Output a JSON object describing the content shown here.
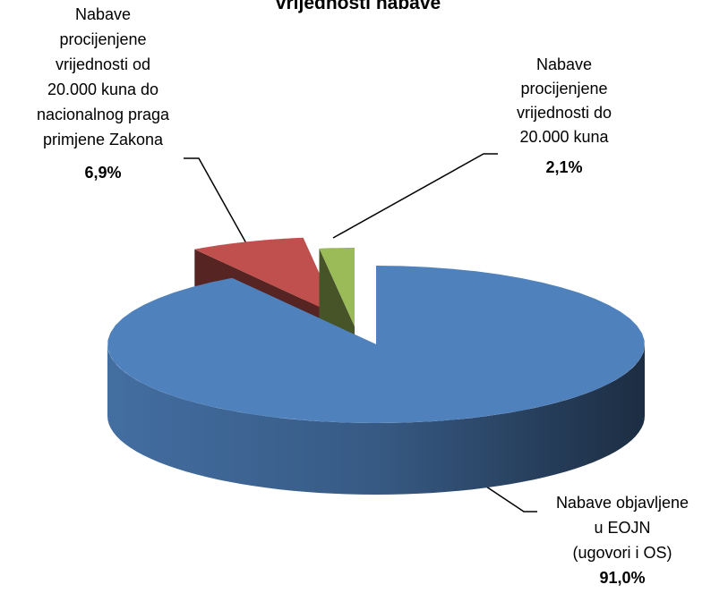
{
  "chart_data": {
    "type": "pie3d",
    "title": "vrijednosti nabave",
    "categories": [
      "Nabave objavljene\nu EOJN\n(ugovori i OS)",
      "Nabave\nprocijenjene\nvrijednosti od\n20.000  kuna do\nnacionalnog praga\nprimjene Zakona",
      "Nabave\nprocijenjene\nvrijednosti do\n20.000 kuna"
    ],
    "values": [
      91.0,
      6.9,
      2.1
    ],
    "value_labels": [
      "91,0%",
      "6,9%",
      "2,1%"
    ],
    "colors": [
      "#4f81bd",
      "#c0504d",
      "#9bbb59"
    ]
  }
}
